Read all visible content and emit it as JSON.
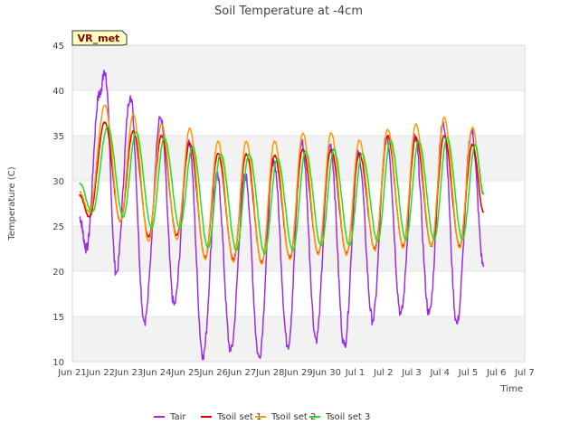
{
  "chart_data": {
    "type": "line",
    "title": "Soil Temperature at -4cm",
    "xlabel": "Time",
    "ylabel": "Temperature (C)",
    "badge": "VR_met",
    "xlim": [
      21,
      36
    ],
    "ylim": [
      10,
      45
    ],
    "grid": true,
    "legend_position": "bottom",
    "x_ticks": [
      {
        "x": 21,
        "label": "Jun 21"
      },
      {
        "x": 22,
        "label": "Jun 22"
      },
      {
        "x": 23,
        "label": "Jun 23"
      },
      {
        "x": 24,
        "label": "Jun 24"
      },
      {
        "x": 25,
        "label": "Jun 25"
      },
      {
        "x": 26,
        "label": "Jun 26"
      },
      {
        "x": 27,
        "label": "Jun 27"
      },
      {
        "x": 28,
        "label": "Jun 28"
      },
      {
        "x": 29,
        "label": "Jun 29"
      },
      {
        "x": 30,
        "label": "Jun 30"
      },
      {
        "x": 31,
        "label": "Jul 1"
      },
      {
        "x": 32,
        "label": "Jul 2"
      },
      {
        "x": 33,
        "label": "Jul 3"
      },
      {
        "x": 34,
        "label": "Jul 4"
      },
      {
        "x": 35,
        "label": "Jul 5"
      },
      {
        "x": 36,
        "label": "Jul 6"
      },
      {
        "x": 37,
        "label": "Jul 7"
      }
    ],
    "y_ticks": [
      10,
      15,
      20,
      25,
      30,
      35,
      40,
      45
    ],
    "x_note": "x = day of June (Jul 1 = 31); extremes listed as [x, temperature]",
    "series": [
      {
        "name": "Tair",
        "color": "#9a2ee6",
        "points": [
          [
            21.25,
            26.0
          ],
          [
            21.5,
            22.5
          ],
          [
            21.95,
            39.5
          ],
          [
            22.15,
            42.0
          ],
          [
            22.55,
            19.8
          ],
          [
            23.05,
            39.4
          ],
          [
            23.55,
            14.5
          ],
          [
            24.12,
            37.0
          ],
          [
            24.6,
            16.3
          ],
          [
            25.12,
            34.5
          ],
          [
            25.62,
            10.7
          ],
          [
            26.12,
            30.5
          ],
          [
            26.6,
            11.2
          ],
          [
            27.12,
            30.6
          ],
          [
            27.6,
            10.5
          ],
          [
            28.12,
            32.3
          ],
          [
            28.62,
            11.8
          ],
          [
            29.12,
            34.2
          ],
          [
            29.62,
            12.5
          ],
          [
            30.12,
            34.0
          ],
          [
            30.62,
            11.8
          ],
          [
            31.12,
            33.0
          ],
          [
            31.62,
            14.6
          ],
          [
            32.12,
            34.9
          ],
          [
            32.62,
            15.3
          ],
          [
            33.12,
            34.8
          ],
          [
            33.62,
            15.3
          ],
          [
            34.12,
            36.5
          ],
          [
            34.6,
            14.2
          ],
          [
            35.12,
            35.5
          ],
          [
            35.55,
            20.5
          ]
        ]
      },
      {
        "name": "Tsoil set 1",
        "color": "#dd0000",
        "points": [
          [
            21.25,
            28.5
          ],
          [
            21.6,
            26.0
          ],
          [
            22.15,
            36.5
          ],
          [
            22.7,
            25.5
          ],
          [
            23.15,
            35.5
          ],
          [
            23.7,
            23.8
          ],
          [
            24.15,
            35.0
          ],
          [
            24.7,
            24.0
          ],
          [
            25.15,
            34.2
          ],
          [
            25.7,
            21.5
          ],
          [
            26.15,
            33.0
          ],
          [
            26.7,
            21.3
          ],
          [
            27.15,
            33.0
          ],
          [
            27.7,
            21.0
          ],
          [
            28.15,
            32.8
          ],
          [
            28.7,
            21.5
          ],
          [
            29.15,
            33.5
          ],
          [
            29.7,
            22.0
          ],
          [
            30.15,
            33.5
          ],
          [
            30.7,
            22.0
          ],
          [
            31.15,
            33.0
          ],
          [
            31.7,
            22.5
          ],
          [
            32.15,
            35.0
          ],
          [
            32.7,
            22.8
          ],
          [
            33.15,
            34.8
          ],
          [
            33.7,
            22.8
          ],
          [
            34.15,
            35.0
          ],
          [
            34.7,
            22.8
          ],
          [
            35.15,
            34.0
          ],
          [
            35.55,
            26.5
          ]
        ]
      },
      {
        "name": "Tsoil set 2",
        "color": "#ff9900",
        "points": [
          [
            21.25,
            28.8
          ],
          [
            21.6,
            26.5
          ],
          [
            22.15,
            38.4
          ],
          [
            22.7,
            25.5
          ],
          [
            23.15,
            37.3
          ],
          [
            23.7,
            23.3
          ],
          [
            24.15,
            36.3
          ],
          [
            24.7,
            23.5
          ],
          [
            25.15,
            35.8
          ],
          [
            25.7,
            21.3
          ],
          [
            26.15,
            34.4
          ],
          [
            26.7,
            21.0
          ],
          [
            27.15,
            34.4
          ],
          [
            27.7,
            20.8
          ],
          [
            28.15,
            34.4
          ],
          [
            28.7,
            21.3
          ],
          [
            29.15,
            35.3
          ],
          [
            29.7,
            21.8
          ],
          [
            30.15,
            35.3
          ],
          [
            30.7,
            21.8
          ],
          [
            31.15,
            34.5
          ],
          [
            31.7,
            22.3
          ],
          [
            32.15,
            35.7
          ],
          [
            32.7,
            22.6
          ],
          [
            33.15,
            36.3
          ],
          [
            33.7,
            22.8
          ],
          [
            34.15,
            37.0
          ],
          [
            34.7,
            22.6
          ],
          [
            35.15,
            35.9
          ],
          [
            35.55,
            28.5
          ]
        ]
      },
      {
        "name": "Tsoil set 3",
        "color": "#22dd22",
        "points": [
          [
            21.25,
            29.8
          ],
          [
            21.7,
            26.5
          ],
          [
            22.25,
            36.0
          ],
          [
            22.8,
            26.0
          ],
          [
            23.25,
            35.4
          ],
          [
            23.8,
            24.8
          ],
          [
            24.25,
            34.8
          ],
          [
            24.8,
            24.8
          ],
          [
            25.25,
            33.8
          ],
          [
            25.8,
            22.6
          ],
          [
            26.25,
            33.0
          ],
          [
            26.8,
            22.3
          ],
          [
            27.25,
            33.0
          ],
          [
            27.8,
            22.0
          ],
          [
            28.25,
            32.5
          ],
          [
            28.8,
            22.3
          ],
          [
            29.25,
            33.3
          ],
          [
            29.8,
            22.8
          ],
          [
            30.25,
            33.5
          ],
          [
            30.8,
            22.8
          ],
          [
            31.25,
            33.0
          ],
          [
            31.8,
            23.3
          ],
          [
            32.25,
            34.5
          ],
          [
            32.8,
            23.5
          ],
          [
            33.25,
            34.4
          ],
          [
            33.8,
            23.5
          ],
          [
            34.25,
            34.8
          ],
          [
            34.8,
            23.5
          ],
          [
            35.25,
            34.0
          ],
          [
            35.55,
            28.5
          ]
        ]
      }
    ]
  }
}
